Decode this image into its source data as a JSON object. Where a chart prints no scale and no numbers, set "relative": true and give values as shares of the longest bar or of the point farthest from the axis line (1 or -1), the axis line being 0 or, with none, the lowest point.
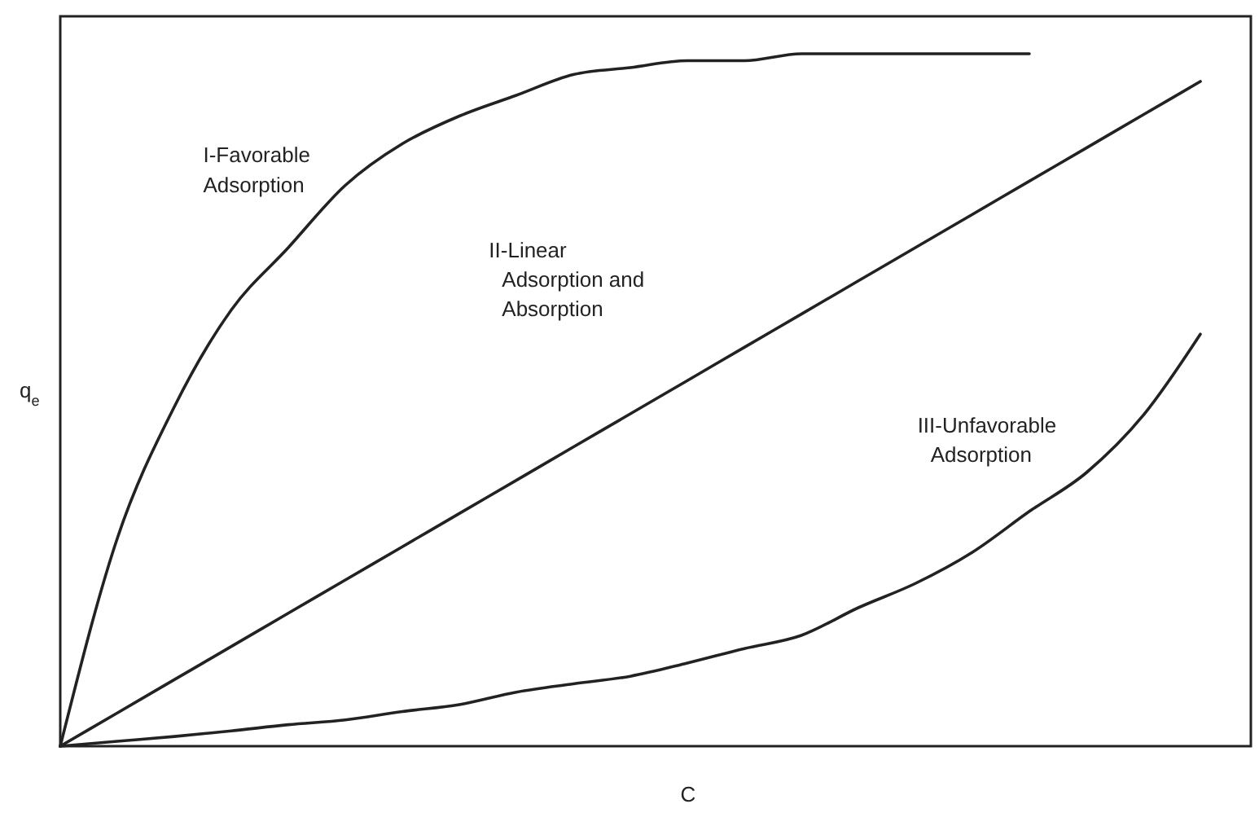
{
  "chart_data": {
    "type": "line",
    "relative": true,
    "xlabel": "C",
    "ylabel": "q$_{e}$",
    "categories": [
      null,
      null,
      null,
      null,
      null,
      null,
      null,
      null,
      null,
      null,
      null,
      null,
      null,
      null,
      null,
      null,
      null,
      null,
      null,
      null,
      null
    ],
    "series": [
      {
        "color": "#222222",
        "values": [
          0,
          0.3,
          0.49,
          0.63,
          0.72,
          0.81,
          0.87,
          0.91,
          0.94,
          0.97,
          0.98,
          0.99,
          0.99,
          1,
          1,
          1,
          1,
          1,
          null,
          null,
          null
        ]
      },
      {
        "color": "#222222",
        "values": [
          0,
          0.048,
          0.096,
          0.144,
          0.192,
          0.24,
          0.288,
          0.336,
          0.384,
          0.432,
          0.48,
          0.528,
          0.576,
          0.624,
          0.672,
          0.72,
          0.768,
          0.816,
          0.864,
          0.912,
          0.96
        ]
      },
      {
        "color": "#222222",
        "values": [
          0,
          0.007,
          0.014,
          0.022,
          0.031,
          0.038,
          0.05,
          0.06,
          0.078,
          0.09,
          0.101,
          0.12,
          0.141,
          0.16,
          0.2,
          0.235,
          0.28,
          0.339,
          0.395,
          0.478,
          0.595
        ]
      }
    ],
    "annotations": [
      "I-Favorable\nAdsorption",
      "II-Linear\nAdsorption and\nAbsorption",
      "III-Unfavorable\nAdsorption"
    ]
  }
}
